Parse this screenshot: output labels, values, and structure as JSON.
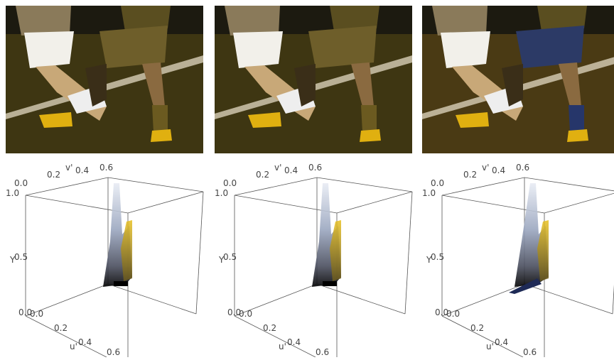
{
  "figure": {
    "plots": [
      {
        "v_label": "v'",
        "u_label": "u'",
        "y_label": "Y",
        "v_ticks": [
          "0.0",
          "0.2",
          "0.4",
          "0.6"
        ],
        "u_ticks": [
          "0.0",
          "0.2",
          "0.4",
          "0.6"
        ],
        "y_ticks": [
          "0.0",
          "0.5",
          "1.0"
        ]
      },
      {
        "v_label": "v'",
        "u_label": "u'",
        "y_label": "Y",
        "v_ticks": [
          "0.0",
          "0.2",
          "0.4",
          "0.6"
        ],
        "u_ticks": [
          "0.0",
          "0.2",
          "0.4",
          "0.6"
        ],
        "y_ticks": [
          "0.0",
          "0.5",
          "1.0"
        ]
      },
      {
        "v_label": "v'",
        "u_label": "u'",
        "y_label": "Y",
        "v_ticks": [
          "0.0",
          "0.2",
          "0.4",
          "0.6"
        ],
        "u_ticks": [
          "0.0",
          "0.2",
          "0.4",
          "0.6"
        ],
        "y_ticks": [
          "0.0",
          "0.5",
          "1.0"
        ]
      }
    ]
  }
}
